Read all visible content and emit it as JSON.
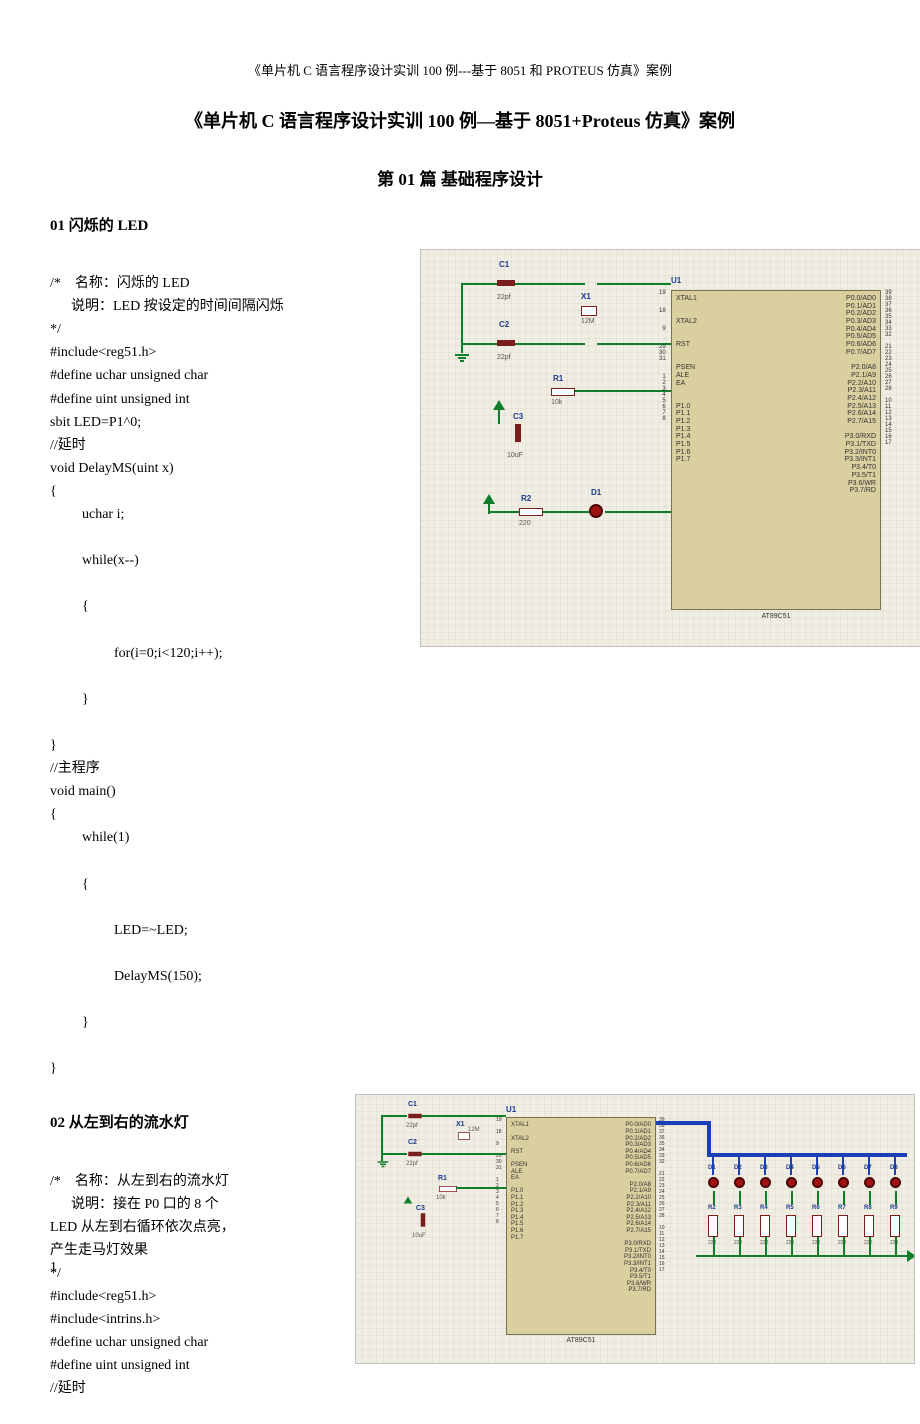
{
  "page_header": "《单片机 C 语言程序设计实训 100 例---基于 8051 和 PROTEUS 仿真》案例",
  "main_title": "《单片机 C 语言程序设计实训 100 例—基于 8051+Proteus 仿真》案例",
  "chapter": "第 01 篇 基础程序设计",
  "sec01": {
    "head": "01   闪烁的 LED",
    "c1": "/*    名称：闪烁的 LED",
    "c2": "      说明：LED 按设定的时间间隔闪烁",
    "c3": "*/",
    "c4": "#include<reg51.h>",
    "c5": "#define uchar unsigned char",
    "c6": "#define uint unsigned int",
    "c7": "sbit LED=P1^0;",
    "c8": "//延时",
    "c9": "void DelayMS(uint x)",
    "c10": "{",
    "c11": "uchar i;",
    "c12": "while(x--)",
    "c13": "{",
    "c14": "for(i=0;i<120;i++);",
    "c15": "}",
    "c16": "}",
    "c17": "//主程序",
    "c18": "void main()",
    "c19": "{",
    "c20": "while(1)",
    "c21": "{",
    "c22": "LED=~LED;",
    "c23": "DelayMS(150);",
    "c24": "}",
    "c25": "}"
  },
  "sec02": {
    "head": "02   从左到右的流水灯",
    "c1": "/*    名称：从左到右的流水灯",
    "c2": "      说明：接在 P0 口的 8 个",
    "c3": "LED 从左到右循环依次点亮，",
    "c4": "产生走马灯效果",
    "c5": "*/",
    "c6": "#include<reg51.h>",
    "c7": "#include<intrins.h>",
    "c8": "#define uchar unsigned char",
    "c9": "#define uint unsigned int",
    "c10": "//延时"
  },
  "page_num": "1",
  "sch1": {
    "labels": {
      "C1": "C1",
      "C2": "C2",
      "C3": "C3",
      "X1": "X1",
      "R1": "R1",
      "R2": "R2",
      "D1": "D1",
      "U1": "U1",
      "v22pf1": "22pf",
      "v22pf2": "22pf",
      "v12M": "12M",
      "v10k": "10k",
      "v10uF": "10uF",
      "v220": "220",
      "chip": "AT89C51"
    },
    "mcu_left": "XTAL1\n\n\nXTAL2\n\n\nRST\n\n\nPSEN\nALE\nEA\n\n\nP1.0\nP1.1\nP1.2\nP1.3\nP1.4\nP1.5\nP1.6\nP1.7",
    "mcu_right": "P0.0/AD0\nP0.1/AD1\nP0.2/AD2\nP0.3/AD3\nP0.4/AD4\nP0.5/AD5\nP0.6/AD6\nP0.7/AD7\n\nP2.0/A8\nP2.1/A9\nP2.2/A10\nP2.3/A11\nP2.4/A12\nP2.5/A13\nP2.6/A14\nP2.7/A15\n\nP3.0/RXD\nP3.1/TXD\nP3.2/INT0\nP3.3/INT1\nP3.4/T0\nP3.5/T1\nP3.6/WR\nP3.7/RD",
    "pins_l": "19\n\n\n18\n\n\n9\n\n\n29\n30\n31\n\n\n1\n2\n3\n4\n5\n6\n7\n8",
    "pins_r": "39\n38\n37\n36\n35\n34\n33\n32\n\n21\n22\n23\n24\n25\n26\n27\n28\n\n10\n11\n12\n13\n14\n15\n16\n17"
  },
  "sch2": {
    "labels": {
      "C1": "C1",
      "C2": "C2",
      "C3": "C3",
      "X1": "X1",
      "R1": "R1",
      "U1": "U1",
      "v22pf1": "22pf",
      "v22pf2": "22pf",
      "v12M": "12M",
      "v10k": "10k",
      "v10uF": "10uF",
      "chip": "AT89C51",
      "D1": "D1",
      "D2": "D2",
      "D3": "D3",
      "D4": "D4",
      "D5": "D5",
      "D6": "D6",
      "D7": "D7",
      "D8": "D8",
      "R2": "R2",
      "R3": "R3",
      "R4": "R4",
      "R5": "R5",
      "R6": "R6",
      "R7": "R7",
      "R8": "R8",
      "R9": "R9",
      "v220": "220"
    },
    "mcu_left": "XTAL1\n\nXTAL2\n\nRST\n\nPSEN\nALE\nEA\n\nP1.0\nP1.1\nP1.2\nP1.3\nP1.4\nP1.5\nP1.6\nP1.7",
    "mcu_right": "P0.0/AD0\nP0.1/AD1\nP0.2/AD2\nP0.3/AD3\nP0.4/AD4\nP0.5/AD5\nP0.6/AD6\nP0.7/AD7\n\nP2.0/A8\nP2.1/A9\nP2.2/A10\nP2.3/A11\nP2.4/A12\nP2.5/A13\nP2.6/A14\nP2.7/A15\n\nP3.0/RXD\nP3.1/TXD\nP3.2/INT0\nP3.3/INT1\nP3.4/T0\nP3.5/T1\nP3.6/WR\nP3.7/RD",
    "pins_l": "19\n\n18\n\n9\n\n29\n30\n31\n\n1\n2\n3\n4\n5\n6\n7\n8",
    "pins_r": "39\n38\n37\n36\n35\n34\n33\n32\n\n21\n22\n23\n24\n25\n26\n27\n28\n\n10\n11\n12\n13\n14\n15\n16\n17"
  }
}
